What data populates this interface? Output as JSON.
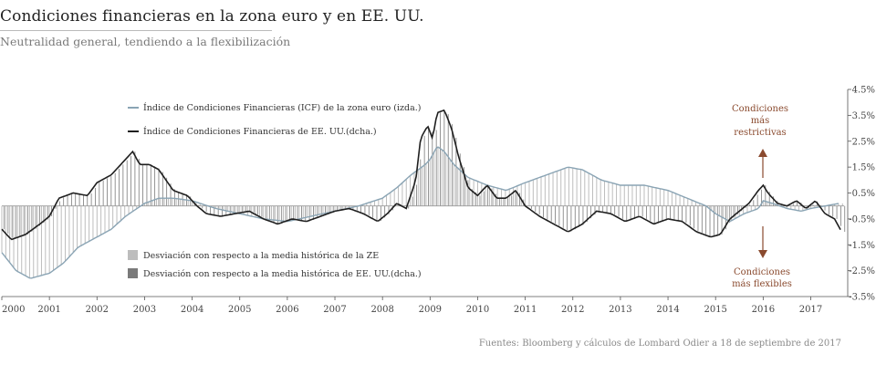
{
  "title": "Condiciones financieras en la zona euro y en EE. UU.",
  "subtitle": "Neutralidad general, tendiendo a la flexibilización",
  "source": "Fuentes: Bloomberg y cálculos de Lombard Odier a 18 de septiembre de 2017",
  "annotations": {
    "restrictive": [
      "Condiciones",
      "más",
      "restrictivas"
    ],
    "flexible": [
      "Condiciones",
      "más flexibles"
    ]
  },
  "legend": {
    "euro_line": "Índice de Condiciones Financieras (ICF) de la zona euro (izda.)",
    "us_line": "Índice de Condiciones Financieras de EE. UU.(dcha.)",
    "euro_dev": "Desviación con respecto a la media histórica de la ZE",
    "us_dev": "Desviación con respecto a la media histórica de EE. UU.(dcha.)"
  },
  "colors": {
    "euro": "#8aa4b4",
    "us": "#1f1f1f",
    "euro_dev": "#bdbdbd",
    "us_dev": "#7a7a7a",
    "accent": "#8a4a2e"
  },
  "chart_data": {
    "type": "line",
    "x_ticks": [
      "2000",
      "2001",
      "2002",
      "2003",
      "2004",
      "2005",
      "2006",
      "2007",
      "2008",
      "2009",
      "2010",
      "2011",
      "2012",
      "2013",
      "2014",
      "2015",
      "2016",
      "2017"
    ],
    "y_ticks_right": [
      "4.5%",
      "3.5%",
      "2.5%",
      "1.5%",
      "0.5%",
      "-0.5%",
      "-1.5%",
      "-2.5%",
      "-3.5%"
    ],
    "ylim_right": [
      -3.5,
      4.5
    ],
    "xlim": [
      2000.0,
      2017.7
    ],
    "grid": false,
    "series": [
      {
        "name": "Índice de Condiciones Financieras (ICF) de la zona euro (izda.)",
        "x": [
          2000.0,
          2000.3,
          2000.6,
          2001.0,
          2001.3,
          2001.6,
          2002.0,
          2002.3,
          2002.6,
          2003.0,
          2003.3,
          2003.6,
          2004.0,
          2004.5,
          2005.0,
          2005.5,
          2006.0,
          2006.5,
          2007.0,
          2007.5,
          2008.0,
          2008.3,
          2008.6,
          2008.9,
          2009.0,
          2009.15,
          2009.3,
          2009.5,
          2009.8,
          2010.2,
          2010.6,
          2011.0,
          2011.3,
          2011.6,
          2011.9,
          2012.2,
          2012.6,
          2013.0,
          2013.5,
          2014.0,
          2014.4,
          2014.8,
          2015.0,
          2015.3,
          2015.6,
          2015.9,
          2016.0,
          2016.2,
          2016.5,
          2016.8,
          2017.0,
          2017.3,
          2017.6
        ],
        "values": [
          -1.8,
          -2.5,
          -2.8,
          -2.6,
          -2.2,
          -1.6,
          -1.2,
          -0.9,
          -0.4,
          0.1,
          0.3,
          0.3,
          0.2,
          -0.1,
          -0.3,
          -0.5,
          -0.6,
          -0.4,
          -0.2,
          0.0,
          0.3,
          0.7,
          1.2,
          1.6,
          1.8,
          2.3,
          2.1,
          1.6,
          1.1,
          0.8,
          0.6,
          0.9,
          1.1,
          1.3,
          1.5,
          1.4,
          1.0,
          0.8,
          0.8,
          0.6,
          0.3,
          0.0,
          -0.3,
          -0.6,
          -0.3,
          -0.1,
          0.2,
          0.1,
          -0.1,
          -0.2,
          -0.1,
          0.0,
          0.1
        ]
      },
      {
        "name": "Índice de Condiciones Financieras de EE. UU.(dcha.)",
        "x": [
          2000.0,
          2000.2,
          2000.5,
          2000.8,
          2001.0,
          2001.2,
          2001.5,
          2001.8,
          2002.0,
          2002.3,
          2002.6,
          2002.75,
          2002.9,
          2003.1,
          2003.3,
          2003.6,
          2003.9,
          2004.1,
          2004.3,
          2004.6,
          2004.9,
          2005.2,
          2005.5,
          2005.8,
          2006.1,
          2006.4,
          2006.7,
          2007.0,
          2007.3,
          2007.6,
          2007.9,
          2008.1,
          2008.3,
          2008.5,
          2008.7,
          2008.8,
          2008.95,
          2009.05,
          2009.15,
          2009.3,
          2009.45,
          2009.6,
          2009.8,
          2010.0,
          2010.2,
          2010.4,
          2010.6,
          2010.8,
          2011.0,
          2011.3,
          2011.6,
          2011.9,
          2012.2,
          2012.5,
          2012.8,
          2013.1,
          2013.4,
          2013.7,
          2014.0,
          2014.3,
          2014.6,
          2014.9,
          2015.1,
          2015.3,
          2015.5,
          2015.7,
          2015.9,
          2016.0,
          2016.1,
          2016.3,
          2016.5,
          2016.7,
          2016.9,
          2017.1,
          2017.3,
          2017.5,
          2017.65
        ],
        "values": [
          -0.9,
          -1.3,
          -1.1,
          -0.7,
          -0.4,
          0.3,
          0.5,
          0.4,
          0.9,
          1.2,
          1.8,
          2.1,
          1.6,
          1.6,
          1.4,
          0.6,
          0.4,
          0.0,
          -0.3,
          -0.4,
          -0.3,
          -0.2,
          -0.5,
          -0.7,
          -0.5,
          -0.6,
          -0.4,
          -0.2,
          -0.1,
          -0.3,
          -0.6,
          -0.3,
          0.1,
          -0.1,
          1.0,
          2.6,
          3.1,
          2.6,
          3.6,
          3.7,
          3.0,
          1.9,
          0.7,
          0.4,
          0.8,
          0.3,
          0.3,
          0.6,
          0.0,
          -0.4,
          -0.7,
          -1.0,
          -0.7,
          -0.2,
          -0.3,
          -0.6,
          -0.4,
          -0.7,
          -0.5,
          -0.6,
          -1.0,
          -1.2,
          -1.1,
          -0.5,
          -0.2,
          0.1,
          0.6,
          0.8,
          0.5,
          0.1,
          0.0,
          0.2,
          -0.1,
          0.2,
          -0.3,
          -0.5,
          -1.0
        ]
      }
    ]
  }
}
